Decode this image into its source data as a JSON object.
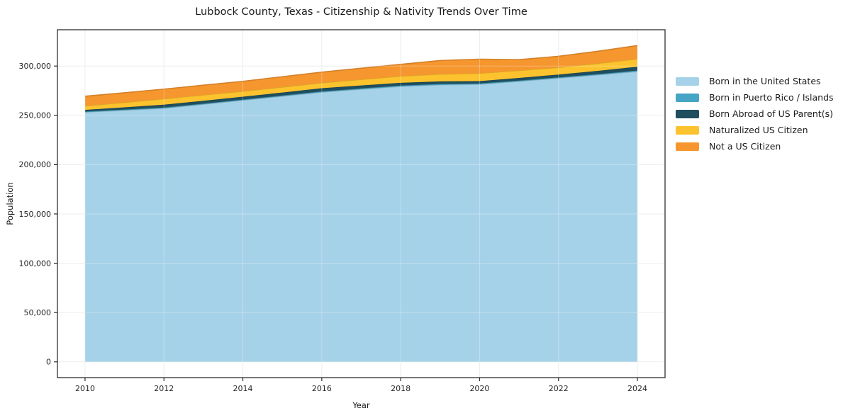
{
  "title": "Lubbock County, Texas - Citizenship & Nativity Trends Over Time",
  "chart_data": {
    "type": "area",
    "stacked": true,
    "title": "Lubbock County, Texas - Citizenship & Nativity Trends Over Time",
    "xlabel": "Year",
    "ylabel": "Population",
    "x": [
      2010,
      2011,
      2012,
      2013,
      2014,
      2015,
      2016,
      2017,
      2018,
      2019,
      2020,
      2021,
      2022,
      2023,
      2024
    ],
    "x_ticks": [
      2010,
      2012,
      2014,
      2016,
      2018,
      2020,
      2022,
      2024
    ],
    "y_ticks": [
      0,
      50000,
      100000,
      150000,
      200000,
      250000,
      300000
    ],
    "xlim": [
      2009.3,
      2024.7
    ],
    "ylim": [
      -16000,
      336800
    ],
    "grid": true,
    "legend_position": "right",
    "series": [
      {
        "name": "Born in the United States",
        "color": "#A5D2E8",
        "values": [
          253200,
          255200,
          257200,
          261200,
          265300,
          269400,
          273500,
          276500,
          279400,
          281000,
          281500,
          284500,
          287800,
          291000,
          294500
        ]
      },
      {
        "name": "Born in Puerto Rico / Islands",
        "color": "#46A5C5",
        "values": [
          700,
          700,
          700,
          700,
          700,
          750,
          800,
          800,
          800,
          800,
          800,
          750,
          700,
          850,
          1000
        ]
      },
      {
        "name": "Born Abroad of US Parent(s)",
        "color": "#1F4E5F",
        "values": [
          1600,
          2200,
          2900,
          2900,
          2900,
          3000,
          3200,
          3000,
          2800,
          2600,
          2400,
          2700,
          2900,
          3300,
          3800
        ]
      },
      {
        "name": "Naturalized US Citizen",
        "color": "#FCC32E",
        "values": [
          4100,
          5000,
          6000,
          5800,
          5500,
          5500,
          5500,
          6100,
          6800,
          7400,
          7900,
          7500,
          7200,
          7500,
          7900
        ]
      },
      {
        "name": "Not a US Citizen",
        "color": "#F6962E",
        "values": [
          9800,
          9800,
          9800,
          10000,
          10100,
          10500,
          10800,
          11400,
          11900,
          13800,
          14400,
          11000,
          11300,
          12400,
          13600
        ]
      }
    ],
    "styles": {
      "grid_color": "#e7e7e7",
      "grid_overlay": "rgba(255,255,255,0.30)",
      "spine_color": "#2e2e2e",
      "tick_color": "#2e2e2e",
      "tick_label_color": "#262626",
      "background": "#ffffff"
    }
  }
}
